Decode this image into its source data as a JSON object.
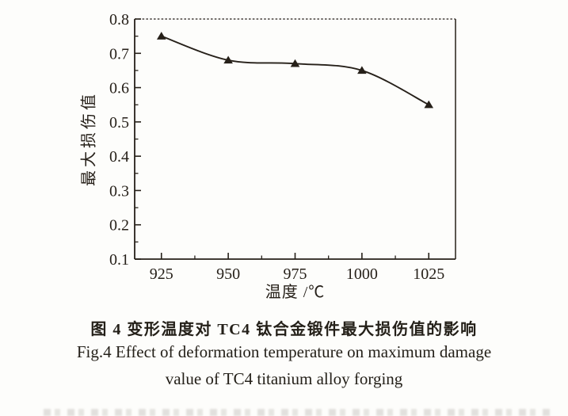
{
  "figure": {
    "caption_zh": "图 4  变形温度对 TC4 钛合金锻件最大损伤值的影响",
    "caption_en_line1": "Fig.4  Effect of deformation temperature on maximum damage",
    "caption_en_line2": "value of TC4 titanium alloy forging"
  },
  "chart_data": {
    "type": "line",
    "x": [
      925,
      950,
      975,
      1000,
      1025
    ],
    "series": [
      {
        "name": "maximum damage value",
        "values": [
          0.75,
          0.68,
          0.67,
          0.65,
          0.55
        ]
      }
    ],
    "title": "",
    "xlabel": "温度 /℃",
    "ylabel": "最大损伤值",
    "xlim": [
      915,
      1035
    ],
    "ylim": [
      0.1,
      0.8
    ],
    "xticks": [
      925,
      950,
      975,
      1000,
      1025
    ],
    "yticks": [
      0.1,
      0.2,
      0.3,
      0.4,
      0.5,
      0.6,
      0.7,
      0.8
    ],
    "ytick_labels": [
      "0.1",
      "0.2",
      "0.3",
      "0.4",
      "0.5",
      "0.6",
      "0.7",
      "0.8"
    ],
    "xtick_labels": [
      "925",
      "950",
      "975",
      "1000",
      "1025"
    ],
    "x_minor_ticks": [
      937.5,
      962.5,
      987.5,
      1012.5
    ],
    "y_minor_ticks": [
      0.15,
      0.25,
      0.35,
      0.45,
      0.55,
      0.65,
      0.75
    ],
    "marker": "triangle-up",
    "grid": false,
    "legend_visible": false,
    "ink_color": "#262019",
    "background_color": "#fdfdfb"
  }
}
